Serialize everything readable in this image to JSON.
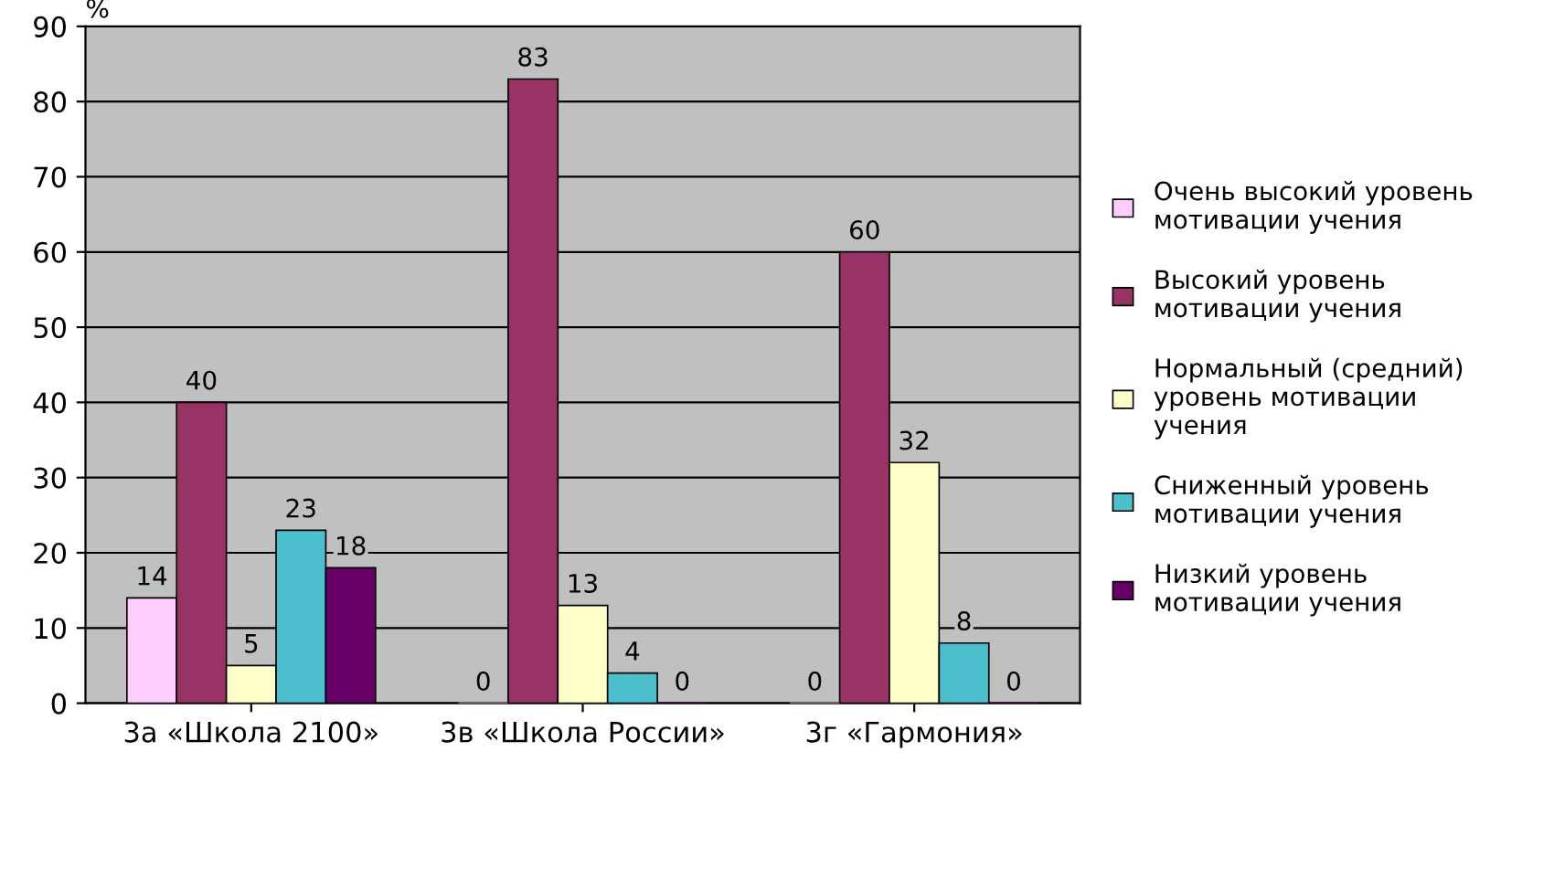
{
  "chart_data": {
    "type": "bar",
    "ylabel": "%",
    "categories": [
      "3а «Школа 2100»",
      "3в «Школа России»",
      "3г «Гармония»"
    ],
    "series": [
      {
        "name": "Очень высокий уровень\nмотивации учения",
        "color": "#ffccff",
        "values": [
          14,
          0,
          0
        ]
      },
      {
        "name": "Высокий уровень\nмотивации учения",
        "color": "#993366",
        "values": [
          40,
          83,
          60
        ]
      },
      {
        "name": "Нормальный (средний)\nуровень мотивации\nучения",
        "color": "#ffffcc",
        "values": [
          5,
          13,
          32
        ]
      },
      {
        "name": "Сниженный уровень\nмотивации учения",
        "color": "#4bbfcc",
        "values": [
          23,
          4,
          8
        ]
      },
      {
        "name": "Низкий уровень\nмотивации учения",
        "color": "#660066",
        "values": [
          18,
          0,
          0
        ]
      }
    ],
    "ylim": [
      0,
      90
    ],
    "yticks": [
      0,
      10,
      20,
      30,
      40,
      50,
      60,
      70,
      80,
      90
    ],
    "grid": "y",
    "legend": "right",
    "data_labels": true
  }
}
